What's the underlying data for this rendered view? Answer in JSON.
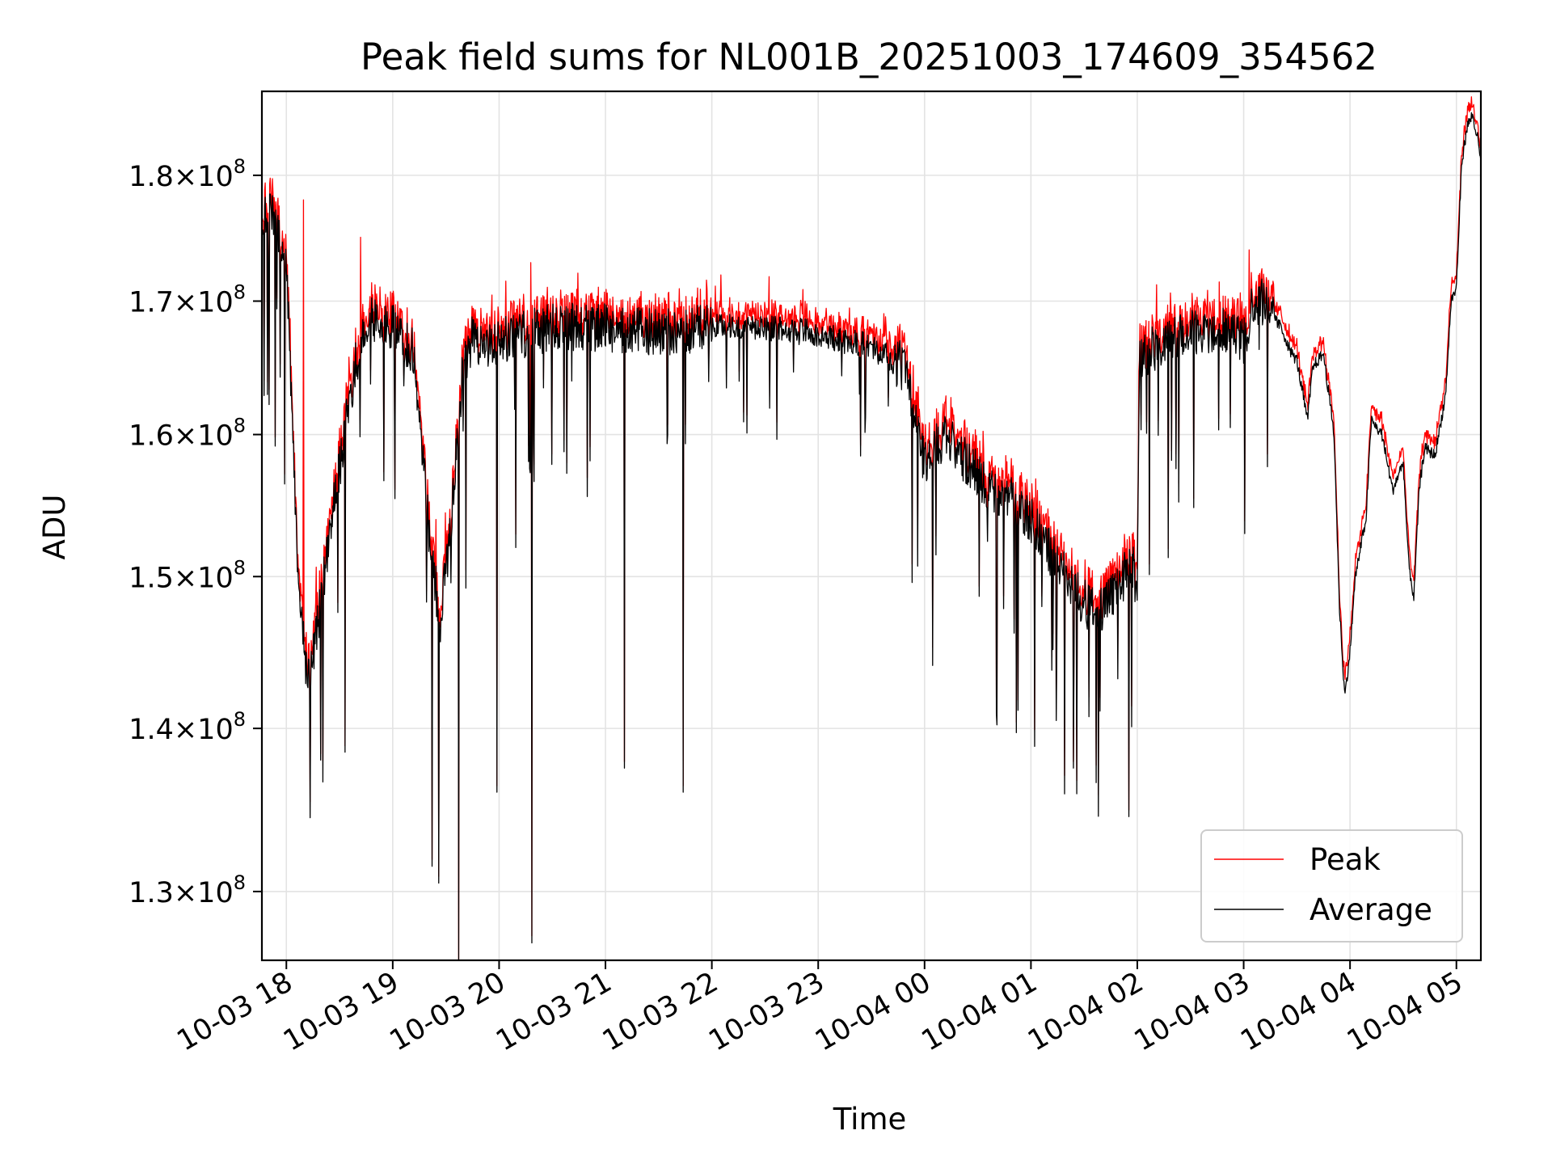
{
  "chart_data": {
    "type": "line",
    "title": "Peak field sums for NL001B_20251003_174609_354562",
    "xlabel": "Time",
    "ylabel": "ADU",
    "yscale": "log",
    "xlim_hours": [
      17.77,
      29.23
    ],
    "ylim": [
      126000000,
      187000000
    ],
    "grid": true,
    "legend_position": "lower-right",
    "x_ticks": [
      {
        "h": 18,
        "label": "10-03 18"
      },
      {
        "h": 19,
        "label": "10-03 19"
      },
      {
        "h": 20,
        "label": "10-03 20"
      },
      {
        "h": 21,
        "label": "10-03 21"
      },
      {
        "h": 22,
        "label": "10-03 22"
      },
      {
        "h": 23,
        "label": "10-03 23"
      },
      {
        "h": 24,
        "label": "10-04 00"
      },
      {
        "h": 25,
        "label": "10-04 01"
      },
      {
        "h": 26,
        "label": "10-04 02"
      },
      {
        "h": 27,
        "label": "10-04 03"
      },
      {
        "h": 28,
        "label": "10-04 04"
      },
      {
        "h": 29,
        "label": "10-04 05"
      }
    ],
    "y_ticks": [
      {
        "value": 130000000,
        "mantissa": "1.3",
        "exp": "8"
      },
      {
        "value": 140000000,
        "mantissa": "1.4",
        "exp": "8"
      },
      {
        "value": 150000000,
        "mantissa": "1.5",
        "exp": "8"
      },
      {
        "value": 160000000,
        "mantissa": "1.6",
        "exp": "8"
      },
      {
        "value": 170000000,
        "mantissa": "1.7",
        "exp": "8"
      },
      {
        "value": 180000000,
        "mantissa": "1.8",
        "exp": "8"
      }
    ],
    "tick_times_label": "×10",
    "series": [
      {
        "name": "Peak",
        "color": "#ff0000",
        "offset_approx": 1000000
      },
      {
        "name": "Average",
        "color": "#000000",
        "offset_approx": 0
      }
    ],
    "baseline_envelope": {
      "x_hours": [
        17.77,
        17.9,
        18.0,
        18.05,
        18.1,
        18.2,
        18.3,
        18.45,
        18.6,
        18.7,
        18.8,
        19.0,
        19.2,
        19.35,
        19.45,
        19.55,
        19.65,
        19.75,
        19.85,
        20.0,
        20.5,
        21.0,
        21.5,
        22.0,
        22.5,
        23.0,
        23.5,
        23.8,
        24.0,
        24.2,
        24.4,
        24.6,
        24.8,
        25.0,
        25.2,
        25.4,
        25.6,
        25.8,
        25.95,
        26.0,
        26.02,
        26.2,
        26.5,
        26.8,
        27.0,
        27.1,
        27.2,
        27.3,
        27.35,
        27.45,
        27.5,
        27.6,
        27.65,
        27.75,
        27.85,
        27.9,
        27.95,
        28.0,
        28.05,
        28.15,
        28.2,
        28.3,
        28.4,
        28.5,
        28.55,
        28.6,
        28.65,
        28.7,
        28.8,
        28.9,
        28.95,
        29.0,
        29.05,
        29.1,
        29.15,
        29.2,
        29.23
      ],
      "average_values": [
        177000000,
        176500000,
        172000000,
        163000000,
        151000000,
        143000000,
        147000000,
        155000000,
        163000000,
        167000000,
        168500000,
        168000000,
        166000000,
        152000000,
        147000000,
        154000000,
        164000000,
        167500000,
        166000000,
        167000000,
        168000000,
        168000000,
        167500000,
        168000000,
        168000000,
        167500000,
        166500000,
        165000000,
        158000000,
        160000000,
        158000000,
        156000000,
        155500000,
        154000000,
        151500000,
        149000000,
        147500000,
        149000000,
        151000000,
        149000000,
        166000000,
        166500000,
        167500000,
        168000000,
        167000000,
        170000000,
        170000000,
        168500000,
        168000000,
        166000000,
        165500000,
        161000000,
        165000000,
        166000000,
        160000000,
        148000000,
        142000000,
        145000000,
        150000000,
        154000000,
        161000000,
        160000000,
        156000000,
        158000000,
        151000000,
        148500000,
        156000000,
        159000000,
        158500000,
        163000000,
        170000000,
        171000000,
        181000000,
        184000000,
        185000000,
        183000000,
        181000000
      ],
      "noise_amplitude_pct": 1.1
    },
    "notable_dips": [
      {
        "h": 18.32,
        "value": 138000000
      },
      {
        "h": 18.55,
        "value": 138500000
      },
      {
        "h": 19.37,
        "value": 131500000
      },
      {
        "h": 19.43,
        "value": 130500000
      },
      {
        "h": 19.62,
        "value": 125500000
      },
      {
        "h": 19.98,
        "value": 136000000
      },
      {
        "h": 20.31,
        "value": 127000000
      },
      {
        "h": 21.18,
        "value": 137500000
      },
      {
        "h": 21.73,
        "value": 136000000
      },
      {
        "h": 25.4,
        "value": 137500000
      },
      {
        "h": 25.92,
        "value": 134500000
      }
    ],
    "notable_spikes": [
      {
        "h": 18.16,
        "value": 178000000
      },
      {
        "h": 18.7,
        "value": 175000000
      },
      {
        "h": 20.3,
        "value": 173000000
      },
      {
        "h": 27.05,
        "value": 174000000
      }
    ]
  }
}
